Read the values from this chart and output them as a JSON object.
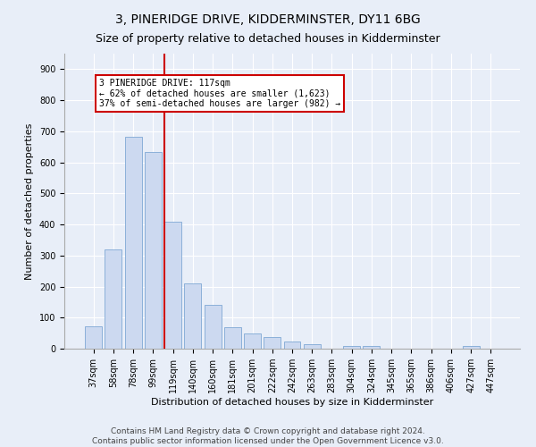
{
  "title": "3, PINERIDGE DRIVE, KIDDERMINSTER, DY11 6BG",
  "subtitle": "Size of property relative to detached houses in Kidderminster",
  "xlabel": "Distribution of detached houses by size in Kidderminster",
  "ylabel": "Number of detached properties",
  "bar_labels": [
    "37sqm",
    "58sqm",
    "78sqm",
    "99sqm",
    "119sqm",
    "140sqm",
    "160sqm",
    "181sqm",
    "201sqm",
    "222sqm",
    "242sqm",
    "263sqm",
    "283sqm",
    "304sqm",
    "324sqm",
    "345sqm",
    "365sqm",
    "386sqm",
    "406sqm",
    "427sqm",
    "447sqm"
  ],
  "bar_values": [
    72,
    320,
    683,
    632,
    410,
    209,
    140,
    70,
    48,
    36,
    22,
    13,
    0,
    8,
    8,
    0,
    0,
    0,
    0,
    8,
    0
  ],
  "bar_color": "#ccd9f0",
  "bar_edge_color": "#7fa8d5",
  "vline_color": "#cc0000",
  "annotation_text": "3 PINERIDGE DRIVE: 117sqm\n← 62% of detached houses are smaller (1,623)\n37% of semi-detached houses are larger (982) →",
  "annotation_box_color": "#ffffff",
  "annotation_box_edge": "#cc0000",
  "ylim": [
    0,
    950
  ],
  "yticks": [
    0,
    100,
    200,
    300,
    400,
    500,
    600,
    700,
    800,
    900
  ],
  "footer_line1": "Contains HM Land Registry data © Crown copyright and database right 2024.",
  "footer_line2": "Contains public sector information licensed under the Open Government Licence v3.0.",
  "bg_color": "#e8eef8",
  "plot_bg_color": "#e8eef8",
  "title_fontsize": 10,
  "subtitle_fontsize": 9,
  "axis_label_fontsize": 8,
  "tick_fontsize": 7,
  "footer_fontsize": 6.5
}
